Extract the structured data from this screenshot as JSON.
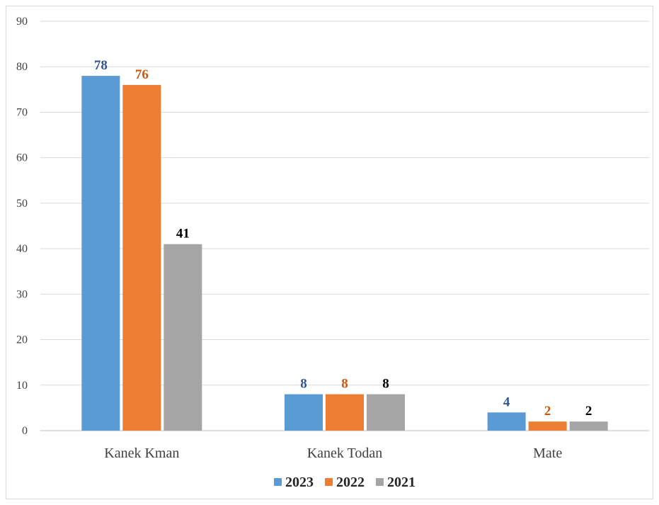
{
  "chart_data": {
    "type": "bar",
    "title": "",
    "xlabel": "",
    "ylabel": "",
    "ylim": [
      0,
      90
    ],
    "yticks": [
      0,
      10,
      20,
      30,
      40,
      50,
      60,
      70,
      80,
      90
    ],
    "grid": true,
    "legend_position": "bottom",
    "categories": [
      "Kanek Kman",
      "Kanek Todan",
      "Mate"
    ],
    "series": [
      {
        "name": "2023",
        "values": [
          78,
          8,
          4
        ],
        "color": "#5b9bd5",
        "label_color": "#2f5597"
      },
      {
        "name": "2022",
        "values": [
          76,
          8,
          2
        ],
        "color": "#ed7d31",
        "label_color": "#c55a11"
      },
      {
        "name": "2021",
        "values": [
          41,
          8,
          2
        ],
        "color": "#a5a5a5",
        "label_color": "#000000"
      }
    ]
  }
}
